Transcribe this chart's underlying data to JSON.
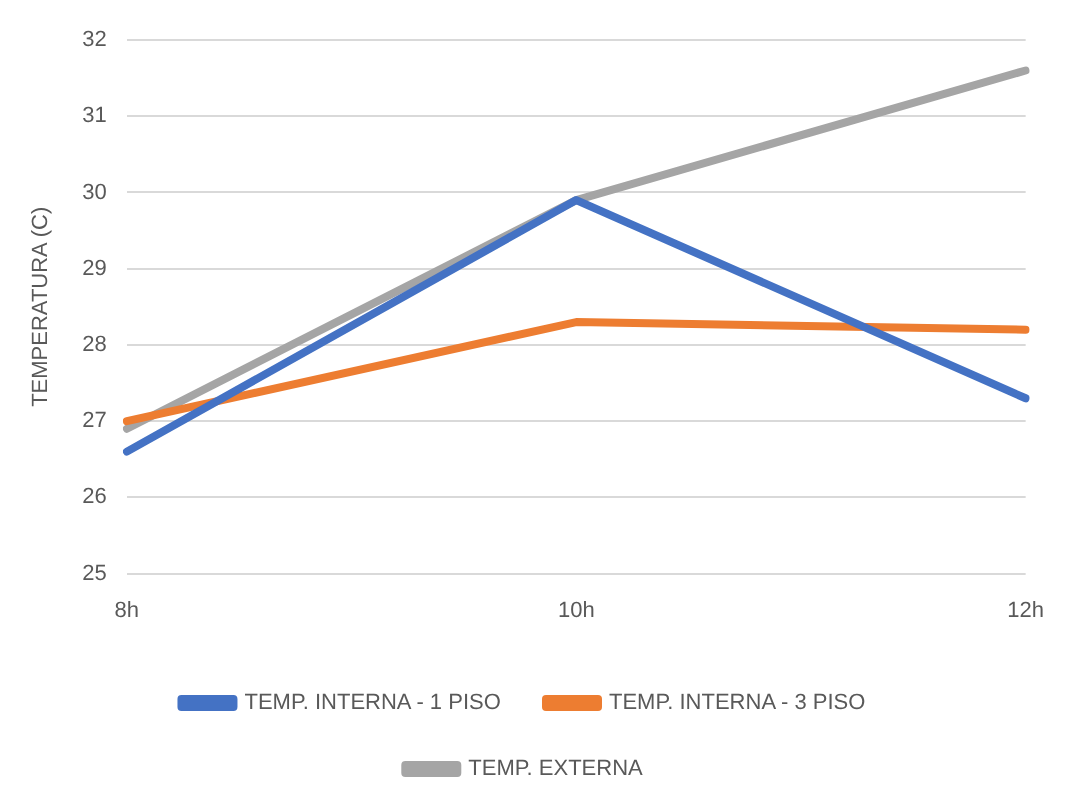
{
  "chart_data": {
    "type": "line",
    "ylabel": "TEMPERATURA (C)",
    "categories": [
      "8h",
      "10h",
      "12h"
    ],
    "series": [
      {
        "name": "TEMP. INTERNA - 1 PISO",
        "color": "#4472c4",
        "values": [
          26.6,
          29.9,
          27.3
        ]
      },
      {
        "name": "TEMP. INTERNA - 3 PISO",
        "color": "#ed7d31",
        "values": [
          27.0,
          28.3,
          28.2
        ]
      },
      {
        "name": "TEMP. EXTERNA",
        "color": "#a5a5a5",
        "values": [
          26.9,
          29.9,
          31.6
        ]
      }
    ],
    "ylim": [
      25,
      32
    ],
    "yticks": [
      25,
      26,
      27,
      28,
      29,
      30,
      31,
      32
    ],
    "grid": "y",
    "legend": "bottom",
    "marker": "none",
    "line_style": "solid"
  }
}
